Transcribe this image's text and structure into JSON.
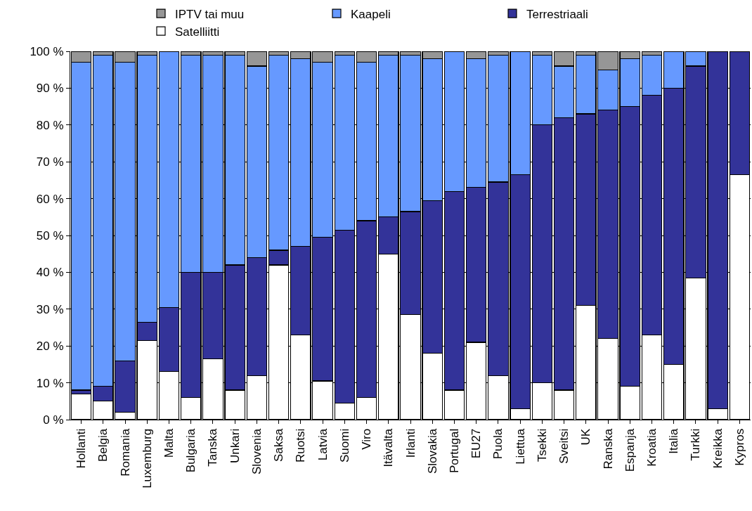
{
  "chart_data": {
    "type": "bar",
    "stacked": true,
    "legend": "top",
    "grid": "y",
    "categories": [
      "Hollanti",
      "Belgia",
      "Romania",
      "Luxemburg",
      "Malta",
      "Bulgaria",
      "Tanska",
      "Unkari",
      "Slovenia",
      "Saksa",
      "Ruotsi",
      "Latvia",
      "Suomi",
      "Viro",
      "Itävalta",
      "Irlanti",
      "Slovakia",
      "Portugal",
      "EU27",
      "Puola",
      "Liettua",
      "Tsekki",
      "Sveitsi",
      "UK",
      "Ranska",
      "Espanja",
      "Kroatia",
      "Italia",
      "Turkki",
      "Kreikka",
      "Kypros"
    ],
    "series": [
      {
        "name": "Satelliitti",
        "color": "#ffffff",
        "values": [
          7,
          5,
          2,
          21.5,
          13,
          6,
          16.5,
          8,
          12,
          42,
          23,
          10.5,
          4.5,
          6,
          45,
          28.5,
          18,
          8,
          21,
          12,
          3,
          10,
          8,
          31,
          22,
          9,
          23,
          15,
          38.5,
          3,
          66.5
        ]
      },
      {
        "name": "Terrestriaali",
        "color": "#333399",
        "values": [
          1,
          4,
          14,
          5,
          17.5,
          34,
          23.5,
          34,
          32,
          4,
          24,
          39,
          47,
          48,
          10,
          28,
          41.5,
          54,
          42,
          52.5,
          63.5,
          70,
          74,
          52,
          62,
          76,
          65,
          75,
          57.5,
          97,
          33.5
        ]
      },
      {
        "name": "Kaapeli",
        "color": "#6699ff",
        "values": [
          89,
          90,
          81,
          72.5,
          69.5,
          59,
          59,
          57,
          52,
          53,
          51,
          47.5,
          47.5,
          43,
          44,
          42.5,
          38.5,
          38,
          35,
          34.5,
          33.5,
          19,
          14,
          16,
          11,
          13,
          11,
          10,
          4,
          0,
          0
        ]
      },
      {
        "name": "IPTV tai muu",
        "color": "#969696",
        "values": [
          3,
          1,
          3,
          1,
          0,
          1,
          1,
          1,
          4,
          1,
          2,
          3,
          1,
          3,
          1,
          1,
          2,
          0,
          2,
          1,
          0,
          1,
          4,
          1,
          5,
          2,
          1,
          0,
          0,
          0,
          0
        ]
      }
    ],
    "ylim": [
      0,
      100
    ],
    "yticks": [
      {
        "value": 0,
        "label": "0 %"
      },
      {
        "value": 10,
        "label": "10 %"
      },
      {
        "value": 20,
        "label": "20 %"
      },
      {
        "value": 30,
        "label": "30 %"
      },
      {
        "value": 40,
        "label": "40 %"
      },
      {
        "value": 50,
        "label": "50 %"
      },
      {
        "value": 60,
        "label": "60 %"
      },
      {
        "value": 70,
        "label": "70 %"
      },
      {
        "value": 80,
        "label": "80 %"
      },
      {
        "value": 90,
        "label": "90 %"
      },
      {
        "value": 100,
        "label": "100 %"
      }
    ]
  }
}
